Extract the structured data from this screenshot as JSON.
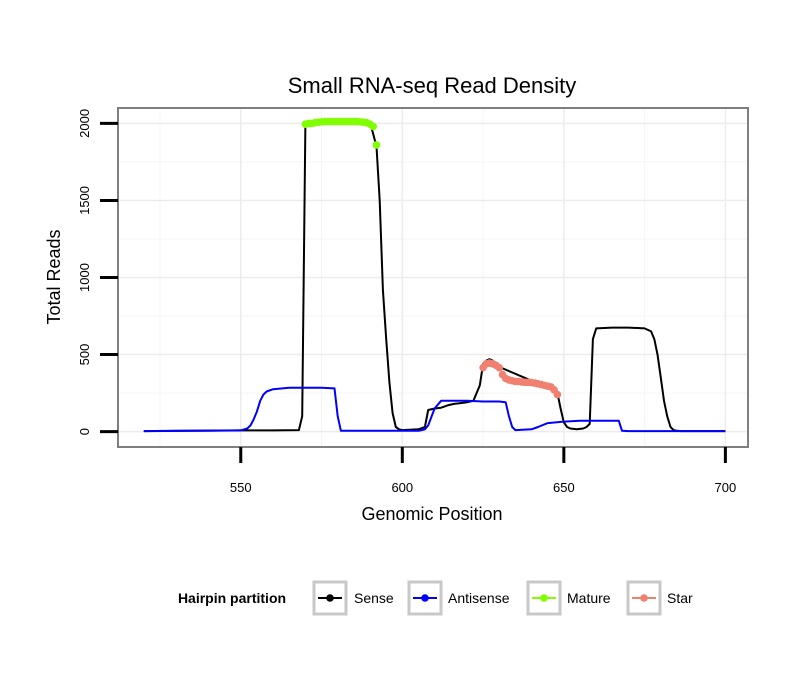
{
  "chart_data": {
    "type": "line",
    "title": "Small RNA-seq Read Density",
    "xlabel": "Genomic Position",
    "ylabel": "Total Reads",
    "xlim": [
      512,
      707
    ],
    "ylim": [
      -100,
      2100
    ],
    "x_ticks": [
      550,
      600,
      650,
      700
    ],
    "y_ticks": [
      0,
      500,
      1000,
      1500,
      2000
    ],
    "x_tick_labels": [
      "550",
      "600",
      "650",
      "700"
    ],
    "y_tick_labels": [
      "0",
      "500",
      "1000",
      "1500",
      "2000"
    ],
    "grid": true,
    "legend": {
      "title": "Hairpin partition",
      "position": "bottom",
      "entries": [
        {
          "label": "Sense",
          "color": "#000000"
        },
        {
          "label": "Antisense",
          "color": "#0000ff"
        },
        {
          "label": "Mature",
          "color": "#7fff00"
        },
        {
          "label": "Star",
          "color": "#f08070"
        }
      ]
    },
    "series": [
      {
        "name": "Sense",
        "color": "#000000",
        "mode": "line",
        "x": [
          520,
          530,
          550,
          560,
          568,
          569,
          570,
          590,
          592,
          593,
          594,
          595,
          596,
          597,
          598,
          599,
          600,
          605,
          607,
          608,
          610,
          612,
          614,
          616,
          618,
          620,
          622,
          624,
          625,
          626,
          627,
          628,
          629,
          630,
          640,
          645,
          648,
          649,
          650,
          651,
          652,
          654,
          656,
          657,
          658,
          659,
          660,
          665,
          670,
          675,
          677,
          678,
          679,
          680,
          681,
          682,
          683,
          684,
          685,
          686,
          690,
          700
        ],
        "y": [
          3,
          5,
          8,
          8,
          10,
          100,
          2000,
          2010,
          1850,
          1500,
          920,
          600,
          320,
          120,
          30,
          15,
          10,
          15,
          30,
          140,
          150,
          155,
          170,
          180,
          185,
          190,
          200,
          300,
          440,
          460,
          470,
          460,
          440,
          420,
          330,
          300,
          250,
          150,
          60,
          30,
          20,
          15,
          20,
          30,
          50,
          600,
          670,
          675,
          675,
          670,
          650,
          600,
          500,
          350,
          200,
          100,
          30,
          10,
          5,
          3,
          3,
          3
        ]
      },
      {
        "name": "Antisense",
        "color": "#0000ff",
        "mode": "line",
        "x": [
          520,
          540,
          550,
          552,
          553,
          554,
          555,
          556,
          557,
          558,
          560,
          565,
          570,
          575,
          579,
          580,
          581,
          590,
          600,
          605,
          606,
          607,
          608,
          610,
          612,
          620,
          625,
          630,
          632,
          633,
          634,
          635,
          640,
          642,
          645,
          650,
          655,
          660,
          665,
          666,
          667,
          668,
          670,
          690,
          700
        ],
        "y": [
          3,
          5,
          8,
          20,
          40,
          80,
          130,
          200,
          240,
          260,
          275,
          285,
          285,
          285,
          280,
          100,
          5,
          5,
          5,
          5,
          10,
          15,
          40,
          150,
          200,
          200,
          195,
          195,
          190,
          100,
          30,
          10,
          15,
          30,
          55,
          65,
          70,
          70,
          70,
          70,
          70,
          5,
          3,
          3,
          3
        ]
      },
      {
        "name": "Mature",
        "color": "#7fff00",
        "mode": "points",
        "x": [
          570,
          571,
          572,
          573,
          574,
          575,
          576,
          577,
          578,
          579,
          580,
          581,
          582,
          583,
          584,
          585,
          586,
          587,
          588,
          589,
          590,
          591,
          592
        ],
        "y": [
          1995,
          2000,
          2000,
          2005,
          2008,
          2010,
          2012,
          2012,
          2012,
          2012,
          2012,
          2012,
          2012,
          2012,
          2012,
          2012,
          2012,
          2010,
          2008,
          2005,
          1995,
          1980,
          1860
        ]
      },
      {
        "name": "Star",
        "color": "#f08070",
        "mode": "points",
        "x": [
          625,
          626,
          627,
          628,
          629,
          630,
          631,
          632,
          633,
          634,
          635,
          636,
          637,
          638,
          639,
          640,
          641,
          642,
          643,
          644,
          645,
          646,
          647,
          648
        ],
        "y": [
          415,
          440,
          445,
          440,
          430,
          415,
          370,
          345,
          335,
          330,
          325,
          325,
          322,
          320,
          320,
          318,
          315,
          310,
          305,
          300,
          295,
          290,
          270,
          240
        ]
      }
    ]
  }
}
